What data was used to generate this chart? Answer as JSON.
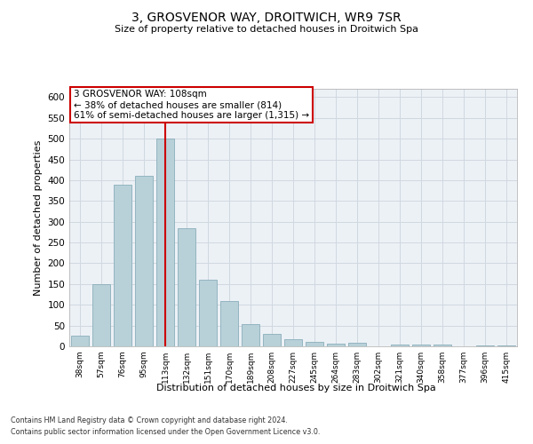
{
  "title": "3, GROSVENOR WAY, DROITWICH, WR9 7SR",
  "subtitle": "Size of property relative to detached houses in Droitwich Spa",
  "xlabel": "Distribution of detached houses by size in Droitwich Spa",
  "ylabel": "Number of detached properties",
  "bar_values": [
    25,
    150,
    390,
    410,
    500,
    285,
    160,
    108,
    53,
    30,
    17,
    11,
    6,
    9,
    0,
    5,
    5,
    5,
    0,
    2,
    2
  ],
  "categories": [
    "38sqm",
    "57sqm",
    "76sqm",
    "95sqm",
    "113sqm",
    "132sqm",
    "151sqm",
    "170sqm",
    "189sqm",
    "208sqm",
    "227sqm",
    "245sqm",
    "264sqm",
    "283sqm",
    "302sqm",
    "321sqm",
    "340sqm",
    "358sqm",
    "377sqm",
    "396sqm",
    "415sqm"
  ],
  "bar_color": "#B8D0D8",
  "bar_edge_color": "#8AAEBA",
  "property_bar_index": 4,
  "vline_color": "#CC0000",
  "annotation_text": "3 GROSVENOR WAY: 108sqm\n← 38% of detached houses are smaller (814)\n61% of semi-detached houses are larger (1,315) →",
  "annotation_box_color": "#ffffff",
  "annotation_box_edge_color": "#CC0000",
  "ylim": [
    0,
    620
  ],
  "yticks": [
    0,
    50,
    100,
    150,
    200,
    250,
    300,
    350,
    400,
    450,
    500,
    550,
    600
  ],
  "background_color": "#ffffff",
  "plot_bg_color": "#ECF1F6",
  "grid_color": "#d0d8e0",
  "footer_line1": "Contains HM Land Registry data © Crown copyright and database right 2024.",
  "footer_line2": "Contains public sector information licensed under the Open Government Licence v3.0."
}
